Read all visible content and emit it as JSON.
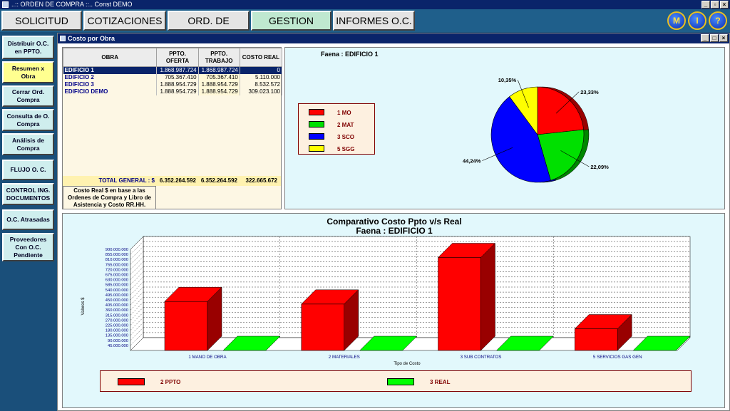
{
  "window": {
    "title": "..:: ORDEN DE COMPRA ::.. Const DEMO"
  },
  "menu": {
    "tabs": [
      {
        "label": "SOLICITUD"
      },
      {
        "label": "COTIZACIONES"
      },
      {
        "label": "ORD. DE COMPRA"
      },
      {
        "label": "GESTION"
      },
      {
        "label": "INFORMES O.C."
      }
    ],
    "round_buttons": [
      "M",
      "I",
      "?"
    ]
  },
  "sidebar": {
    "items": [
      {
        "label": "Distribuir O.C. en PPTO."
      },
      {
        "label": "Resumen x Obra"
      },
      {
        "label": "Cerrar Ord. Compra"
      },
      {
        "label": "Consulta de O. Compra"
      },
      {
        "label": "Análisis de Compra"
      },
      {
        "label": "FLUJO O. C."
      },
      {
        "label": "CONTROL ING. DOCUMENTOS"
      },
      {
        "label": "O.C. Atrasadas"
      },
      {
        "label": "Proveedores Con O.C. Pendiente"
      }
    ]
  },
  "subwindow": {
    "title": "Costo por Obra"
  },
  "table": {
    "headers": [
      "OBRA",
      "PPTO. OFERTA",
      "PPTO. TRABAJO",
      "COSTO REAL"
    ],
    "rows": [
      {
        "obra": "EDIFICIO 1",
        "oferta": "1.868.987.724",
        "trabajo": "1.868.987.724",
        "real": "0"
      },
      {
        "obra": "EDIFICIO 2",
        "oferta": "705.367.410",
        "trabajo": "705.367.410",
        "real": "5.110.000"
      },
      {
        "obra": "EDIFICIO 3",
        "oferta": "1.888.954.729",
        "trabajo": "1.888.954.729",
        "real": "8.532.572"
      },
      {
        "obra": "EDIFICIO DEMO",
        "oferta": "1.888.954.729",
        "trabajo": "1.888.954.729",
        "real": "309.023.100"
      }
    ],
    "total_label": "TOTAL GENERAL  : $",
    "total_oferta": "6.352.264.592",
    "total_trabajo": "6.352.264.592",
    "total_real": "322.665.672",
    "note": "Costo Real $ en base a las Ordenes de Compra y Libro de Asistencia y Costo RR.HH."
  },
  "chart_data": [
    {
      "type": "pie",
      "title": "Faena : EDIFICIO 1",
      "slices": [
        {
          "label": "1 MO",
          "value": 23.33,
          "pct_label": "23,33%",
          "color": "#ff0000"
        },
        {
          "label": "2 MAT",
          "value": 22.09,
          "pct_label": "22,09%",
          "color": "#00e000"
        },
        {
          "label": "3 SCO",
          "value": 44.24,
          "pct_label": "44,24%",
          "color": "#0000ff"
        },
        {
          "label": "5 SGG",
          "value": 10.35,
          "pct_label": "10,35%",
          "color": "#ffff00"
        }
      ],
      "legend": "left"
    },
    {
      "type": "bar",
      "title": "Comparativo Costo Ppto v/s Real",
      "subtitle": "Faena : EDIFICIO 1",
      "xlabel": "Tipo de Costo",
      "ylabel": "Valores $",
      "categories": [
        "1 MANO DE OBRA",
        "2 MATERIALES",
        "3 SUB CONTRATOS",
        "5 SERVICIOS GAS GEN"
      ],
      "series": [
        {
          "name": "2 PPTO",
          "color": "#ff0000",
          "values": [
            436000000,
            413000000,
            827000000,
            193000000
          ]
        },
        {
          "name": "3 REAL",
          "color": "#00ff00",
          "values": [
            0,
            0,
            0,
            0
          ]
        }
      ],
      "yticks": [
        "45.000.000",
        "90.000.000",
        "135.000.000",
        "180.000.000",
        "225.000.000",
        "270.000.000",
        "315.000.000",
        "360.000.000",
        "405.000.000",
        "450.000.000",
        "495.000.000",
        "540.000.000",
        "585.000.000",
        "630.000.000",
        "675.000.000",
        "720.000.000",
        "765.000.000",
        "810.000.000",
        "855.000.000",
        "900.000.000"
      ],
      "ylim": [
        0,
        900000000
      ],
      "grid": true,
      "legend": "bottom"
    }
  ]
}
